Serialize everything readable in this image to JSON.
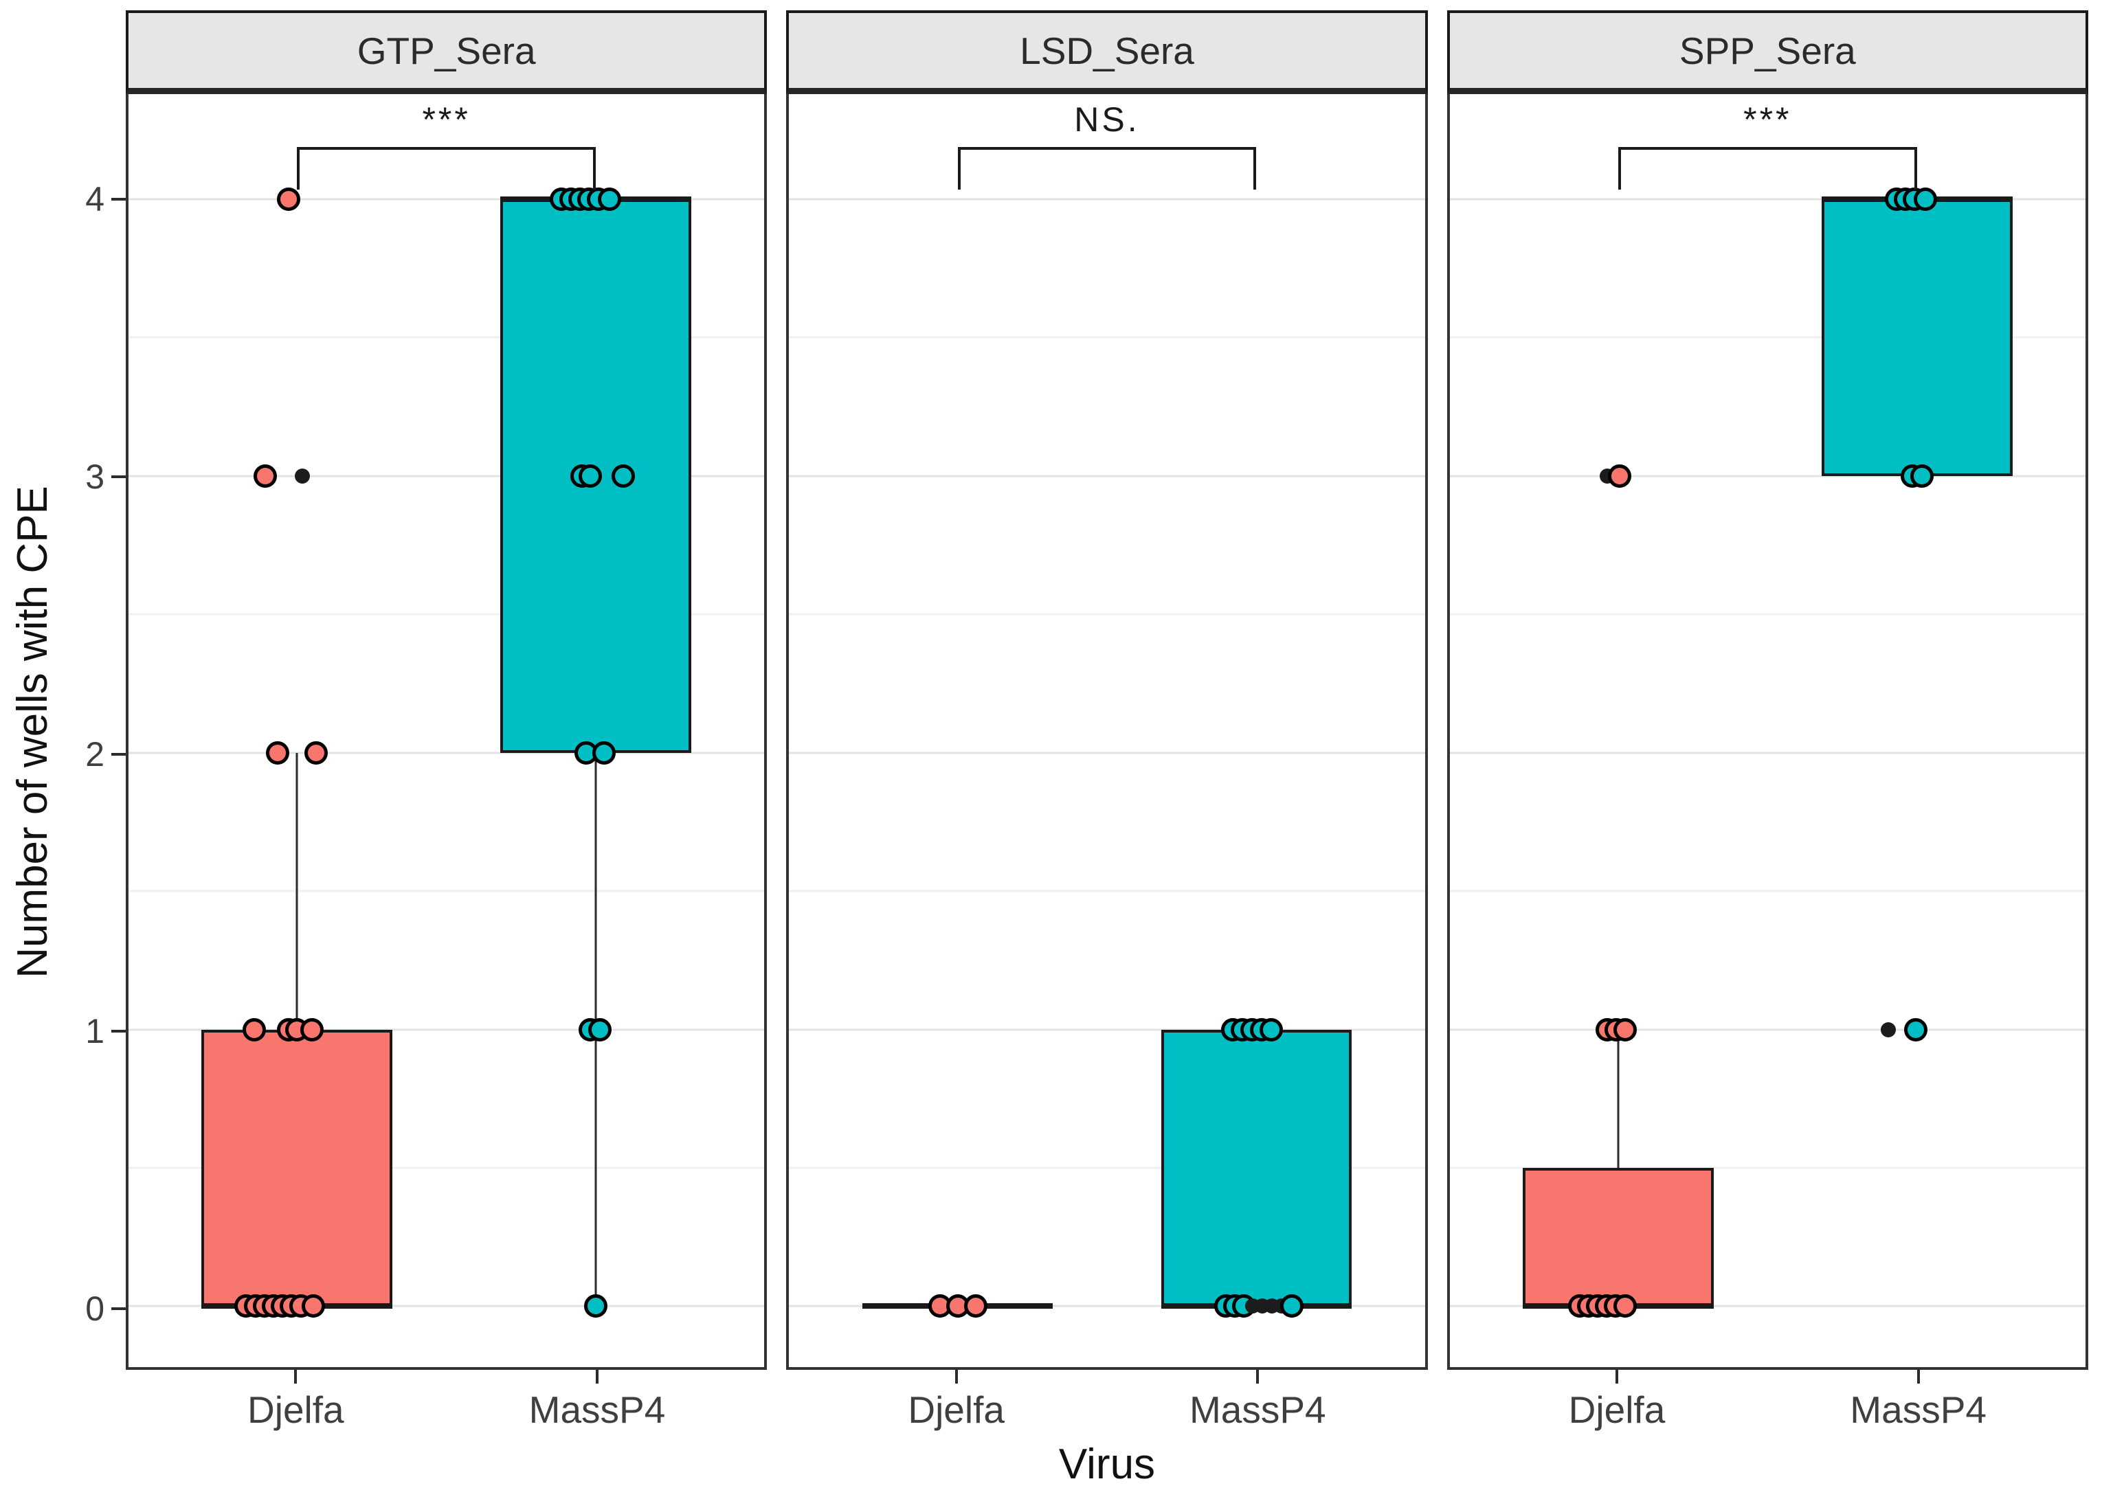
{
  "figure": {
    "y_label": "Number of wells with CPE",
    "x_label": "Virus"
  },
  "chart_data": {
    "type": "boxplot",
    "facet_variable_values": [
      "GTP_Sera",
      "LSD_Sera",
      "SPP_Sera"
    ],
    "xlabel": "Virus",
    "ylabel": "Number of wells with CPE",
    "y_ticks": [
      0,
      1,
      2,
      3,
      4
    ],
    "y_minor_ticks": [
      0.5,
      1.5,
      2.5,
      3.5
    ],
    "y_domain": [
      -0.22,
      4.38
    ],
    "categories": [
      "Djelfa",
      "MassP4"
    ],
    "category_centers_pct": {
      "Djelfa": 26.5,
      "MassP4": 73.5
    },
    "colors": {
      "Djelfa": "#F8766D",
      "MassP4": "#00BFC4",
      "outlier": "#1c1c1c"
    },
    "grid": true,
    "facets": [
      {
        "label": "GTP_Sera",
        "significance": "***",
        "boxes": [
          {
            "group": "Djelfa",
            "q1": 0,
            "median": 0,
            "q3": 1,
            "whisker_low": 0,
            "whisker_high": 2
          },
          {
            "group": "MassP4",
            "q1": 2,
            "median": 4,
            "q3": 4,
            "whisker_low": 0,
            "whisker_high": 4
          }
        ],
        "points": [
          {
            "group": "Djelfa",
            "value": 4,
            "dx": -12,
            "type": "fill"
          },
          {
            "group": "Djelfa",
            "value": 3,
            "dx": -46,
            "type": "fill"
          },
          {
            "group": "Djelfa",
            "value": 3,
            "dx": 8,
            "type": "outlier"
          },
          {
            "group": "Djelfa",
            "value": 2,
            "dx": -28,
            "type": "fill"
          },
          {
            "group": "Djelfa",
            "value": 2,
            "dx": 28,
            "type": "fill"
          },
          {
            "group": "Djelfa",
            "value": 1,
            "dx": -62,
            "type": "fill"
          },
          {
            "group": "Djelfa",
            "value": 1,
            "dx": -12,
            "type": "fill"
          },
          {
            "group": "Djelfa",
            "value": 1,
            "dx": 0,
            "type": "fill"
          },
          {
            "group": "Djelfa",
            "value": 1,
            "dx": 22,
            "type": "fill"
          },
          {
            "group": "Djelfa",
            "value": 0,
            "dx": -74,
            "type": "fill"
          },
          {
            "group": "Djelfa",
            "value": 0,
            "dx": -60,
            "type": "fill"
          },
          {
            "group": "Djelfa",
            "value": 0,
            "dx": -47,
            "type": "fill"
          },
          {
            "group": "Djelfa",
            "value": 0,
            "dx": -34,
            "type": "fill"
          },
          {
            "group": "Djelfa",
            "value": 0,
            "dx": -21,
            "type": "fill"
          },
          {
            "group": "Djelfa",
            "value": 0,
            "dx": -8,
            "type": "fill"
          },
          {
            "group": "Djelfa",
            "value": 0,
            "dx": 6,
            "type": "fill"
          },
          {
            "group": "Djelfa",
            "value": 0,
            "dx": 24,
            "type": "fill"
          },
          {
            "group": "MassP4",
            "value": 4,
            "dx": -50,
            "type": "fill"
          },
          {
            "group": "MassP4",
            "value": 4,
            "dx": -36,
            "type": "fill"
          },
          {
            "group": "MassP4",
            "value": 4,
            "dx": -23,
            "type": "fill"
          },
          {
            "group": "MassP4",
            "value": 4,
            "dx": -10,
            "type": "fill"
          },
          {
            "group": "MassP4",
            "value": 4,
            "dx": 4,
            "type": "fill"
          },
          {
            "group": "MassP4",
            "value": 4,
            "dx": 20,
            "type": "fill"
          },
          {
            "group": "MassP4",
            "value": 3,
            "dx": -20,
            "type": "fill"
          },
          {
            "group": "MassP4",
            "value": 3,
            "dx": -8,
            "type": "fill"
          },
          {
            "group": "MassP4",
            "value": 3,
            "dx": 40,
            "type": "fill"
          },
          {
            "group": "MassP4",
            "value": 2,
            "dx": -14,
            "type": "fill"
          },
          {
            "group": "MassP4",
            "value": 2,
            "dx": 12,
            "type": "fill"
          },
          {
            "group": "MassP4",
            "value": 1,
            "dx": -8,
            "type": "fill"
          },
          {
            "group": "MassP4",
            "value": 1,
            "dx": 6,
            "type": "fill"
          },
          {
            "group": "MassP4",
            "value": 0,
            "dx": 0,
            "type": "fill"
          }
        ]
      },
      {
        "label": "LSD_Sera",
        "significance": "NS.",
        "boxes": [
          {
            "group": "Djelfa",
            "q1": 0,
            "median": 0,
            "q3": 0,
            "whisker_low": 0,
            "whisker_high": 0
          },
          {
            "group": "MassP4",
            "q1": 0,
            "median": 0,
            "q3": 1,
            "whisker_low": 0,
            "whisker_high": 1
          }
        ],
        "points": [
          {
            "group": "Djelfa",
            "value": 0,
            "dx": -26,
            "type": "fill"
          },
          {
            "group": "Djelfa",
            "value": 0,
            "dx": 0,
            "type": "fill"
          },
          {
            "group": "Djelfa",
            "value": 0,
            "dx": 26,
            "type": "fill"
          },
          {
            "group": "MassP4",
            "value": 1,
            "dx": -34,
            "type": "fill"
          },
          {
            "group": "MassP4",
            "value": 1,
            "dx": -20,
            "type": "fill"
          },
          {
            "group": "MassP4",
            "value": 1,
            "dx": -6,
            "type": "fill"
          },
          {
            "group": "MassP4",
            "value": 1,
            "dx": 8,
            "type": "fill"
          },
          {
            "group": "MassP4",
            "value": 1,
            "dx": 22,
            "type": "fill"
          },
          {
            "group": "MassP4",
            "value": 0,
            "dx": -44,
            "type": "fill"
          },
          {
            "group": "MassP4",
            "value": 0,
            "dx": -31,
            "type": "fill"
          },
          {
            "group": "MassP4",
            "value": 0,
            "dx": -18,
            "type": "fill"
          },
          {
            "group": "MassP4",
            "value": 0,
            "dx": -5,
            "type": "outlier"
          },
          {
            "group": "MassP4",
            "value": 0,
            "dx": 9,
            "type": "outlier"
          },
          {
            "group": "MassP4",
            "value": 0,
            "dx": 23,
            "type": "outlier"
          },
          {
            "group": "MassP4",
            "value": 0,
            "dx": 37,
            "type": "outlier"
          },
          {
            "group": "MassP4",
            "value": 0,
            "dx": 52,
            "type": "fill"
          }
        ]
      },
      {
        "label": "SPP_Sera",
        "significance": "***",
        "boxes": [
          {
            "group": "Djelfa",
            "q1": 0,
            "median": 0,
            "q3": 0.5,
            "whisker_low": 0,
            "whisker_high": 1
          },
          {
            "group": "MassP4",
            "q1": 3,
            "median": 4,
            "q3": 4,
            "whisker_low": 3,
            "whisker_high": 4
          }
        ],
        "points": [
          {
            "group": "Djelfa",
            "value": 3,
            "dx": -16,
            "type": "outlier"
          },
          {
            "group": "Djelfa",
            "value": 3,
            "dx": 2,
            "type": "fill"
          },
          {
            "group": "Djelfa",
            "value": 1,
            "dx": -16,
            "type": "fill"
          },
          {
            "group": "Djelfa",
            "value": 1,
            "dx": -3,
            "type": "fill"
          },
          {
            "group": "Djelfa",
            "value": 1,
            "dx": 10,
            "type": "fill"
          },
          {
            "group": "Djelfa",
            "value": 0,
            "dx": -56,
            "type": "fill"
          },
          {
            "group": "Djelfa",
            "value": 0,
            "dx": -43,
            "type": "fill"
          },
          {
            "group": "Djelfa",
            "value": 0,
            "dx": -30,
            "type": "fill"
          },
          {
            "group": "Djelfa",
            "value": 0,
            "dx": -17,
            "type": "fill"
          },
          {
            "group": "Djelfa",
            "value": 0,
            "dx": -4,
            "type": "fill"
          },
          {
            "group": "Djelfa",
            "value": 0,
            "dx": 10,
            "type": "fill"
          },
          {
            "group": "MassP4",
            "value": 4,
            "dx": -30,
            "type": "fill"
          },
          {
            "group": "MassP4",
            "value": 4,
            "dx": -17,
            "type": "fill"
          },
          {
            "group": "MassP4",
            "value": 4,
            "dx": -4,
            "type": "fill"
          },
          {
            "group": "MassP4",
            "value": 4,
            "dx": 12,
            "type": "fill"
          },
          {
            "group": "MassP4",
            "value": 3,
            "dx": -7,
            "type": "fill"
          },
          {
            "group": "MassP4",
            "value": 3,
            "dx": 7,
            "type": "fill"
          },
          {
            "group": "MassP4",
            "value": 1,
            "dx": -42,
            "type": "outlier"
          },
          {
            "group": "MassP4",
            "value": 1,
            "dx": -2,
            "type": "fill"
          }
        ]
      }
    ]
  }
}
